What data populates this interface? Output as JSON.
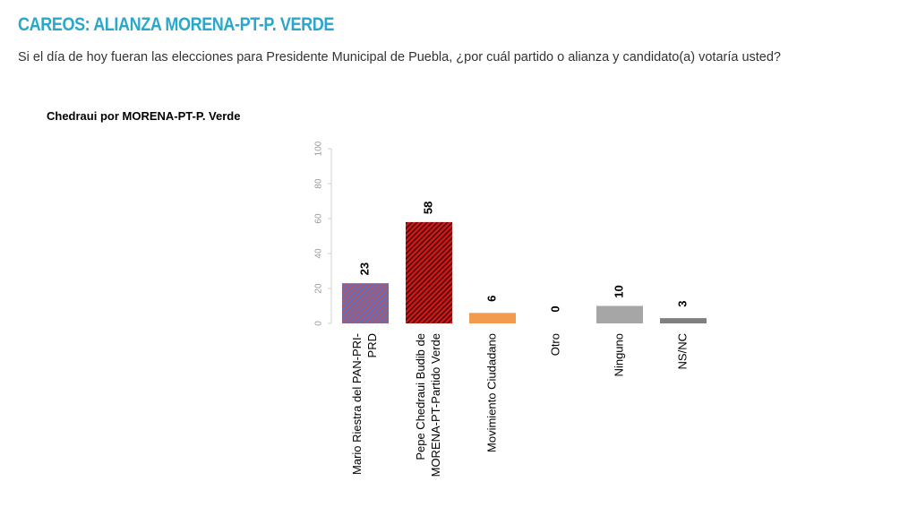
{
  "header": {
    "title": "CAREOS: ALIANZA MORENA-PT-P. VERDE",
    "question": "Si el día de hoy fueran las elecciones para Presidente Municipal de Puebla, ¿por cuál partido o alianza y candidato(a) votaría usted?"
  },
  "chart_data": {
    "type": "bar",
    "title": "Chedraui por MORENA-PT-P. Verde",
    "xlabel": "",
    "ylabel": "",
    "ylim": [
      0,
      100
    ],
    "yticks": [
      0,
      20,
      40,
      60,
      80,
      100
    ],
    "grid": false,
    "categories": [
      [
        "Mario Riestra del PAN-PRI-",
        "PRD"
      ],
      [
        "Pepe Chedraui Budib de",
        "MORENA-PT-Partido Verde"
      ],
      [
        "Movimiento Ciudadano"
      ],
      [
        "Otro"
      ],
      [
        "Ninguno"
      ],
      [
        "NS/NC"
      ]
    ],
    "values": [
      23,
      58,
      6,
      0,
      10,
      3
    ],
    "bar_colors": [
      "#6f6fae",
      "#c41a1a",
      "#f29b4f",
      "#ffffff",
      "#a6a6a6",
      "#7f7f7f"
    ],
    "bar_patterns": [
      "diag-blue-red",
      "diag-red-black",
      "solid",
      "solid",
      "solid",
      "solid"
    ]
  }
}
